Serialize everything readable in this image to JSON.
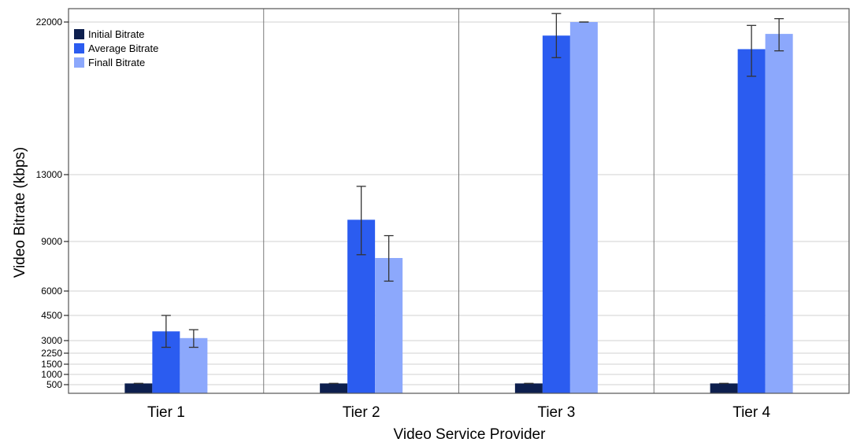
{
  "chart_data": {
    "type": "bar",
    "xlabel": "Video Service Provider",
    "ylabel": "Video Bitrate (kbps)",
    "categories": [
      "Tier 1",
      "Tier 2",
      "Tier 3",
      "Tier 4"
    ],
    "y_ticks": [
      500,
      1000,
      1500,
      2250,
      3000,
      4500,
      6000,
      9000,
      13000,
      22000
    ],
    "ylim": [
      0,
      22000
    ],
    "grid": true,
    "legend_position": "top-left",
    "series": [
      {
        "name": "Initial Bitrate",
        "color": "#0d1f4e",
        "values": [
          560,
          560,
          560,
          560
        ],
        "error": [
          [
            560,
            560
          ],
          [
            560,
            560
          ],
          [
            560,
            560
          ],
          [
            560,
            560
          ]
        ]
      },
      {
        "name": "Average Bitrate",
        "color": "#2b5cf0",
        "values": [
          3550,
          10300,
          21200,
          20400
        ],
        "error": [
          [
            2600,
            4500
          ],
          [
            8200,
            12300
          ],
          [
            19900,
            22500
          ],
          [
            18800,
            21800
          ]
        ]
      },
      {
        "name": "Finall Bitrate",
        "color": "#8ca8fc",
        "values": [
          3150,
          8000,
          22000,
          21300
        ],
        "error": [
          [
            2600,
            3650
          ],
          [
            6600,
            9350
          ],
          [
            22000,
            22000
          ],
          [
            20300,
            22200
          ]
        ]
      }
    ]
  }
}
